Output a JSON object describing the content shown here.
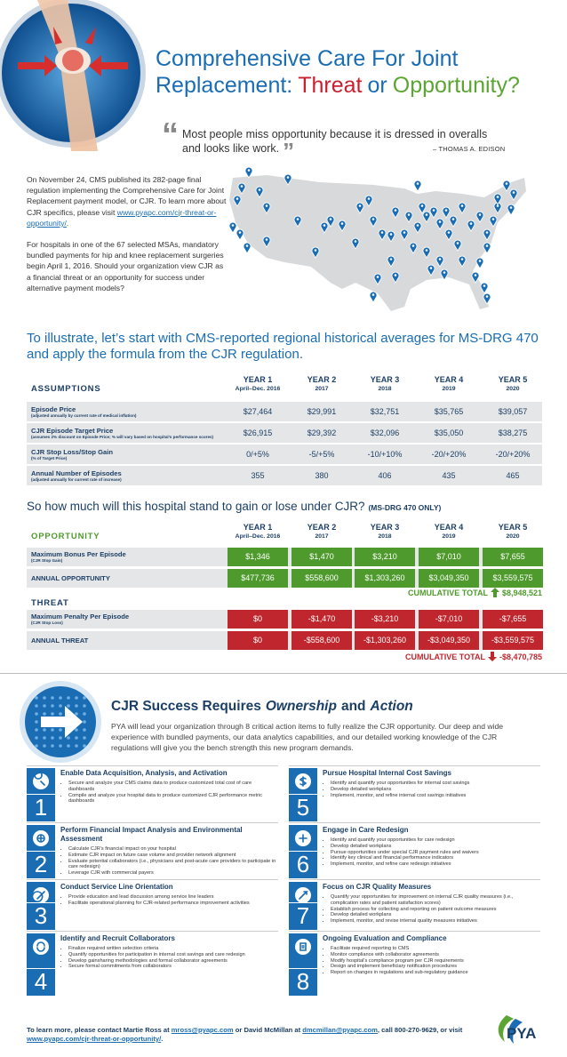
{
  "header": {
    "title_line1": "Comprehensive Care For Joint",
    "title_line2": [
      {
        "text": "Replacement:",
        "color": "#1a6db3"
      },
      {
        "text": "Threat",
        "color": "#c8202f"
      },
      {
        "text": "or",
        "color": "#1a6db3"
      },
      {
        "text": "Opportunity?",
        "color": "#5ba532"
      }
    ]
  },
  "quote": {
    "open_mark": "“",
    "text": "Most people miss opportunity because it is dressed in overalls and looks like work.",
    "close_mark": "”",
    "author": "– THOMAS A. EDISON"
  },
  "intro": [
    [
      {
        "text": "On November 24, CMS published its 282-page final regulation implementing the Comprehensive Care for Joint Replacement payment model, or CJR. To learn more about CJR specifics, please visit "
      },
      {
        "link": "www.pyapc.com/cjr-threat-or-opportunity/"
      },
      {
        "text": "."
      }
    ],
    [
      {
        "text": "For hospitals in one of the 67 selected MSAs, mandatory bundled payments for hip and knee replacement surgeries begin April 1, 2016. Should your organization view CJR as a financial threat or an opportunity for success under alternative payment models?"
      }
    ]
  ],
  "headline": "To illustrate, let’s start with CMS-reported regional historical averages for MS-DRG 470 and apply the formula from the CJR regulation.",
  "years": [
    {
      "year": "YEAR 1",
      "sub": "April–Dec. 2016"
    },
    {
      "year": "YEAR 2",
      "sub": "2017"
    },
    {
      "year": "YEAR 3",
      "sub": "2018"
    },
    {
      "year": "YEAR 4",
      "sub": "2019"
    },
    {
      "year": "YEAR 5",
      "sub": "2020"
    }
  ],
  "assumptions": {
    "label": "ASSUMPTIONS",
    "rows": [
      {
        "label": "Episode Price",
        "sub": "(adjusted annually by current rate of medical inflation)",
        "cells": [
          "$27,464",
          "$29,991",
          "$32,751",
          "$35,765",
          "$39,057"
        ]
      },
      {
        "label": "CJR Episode Target Price",
        "sub": "(assumes 2% discount on Episode Price; % will vary based on hospital’s performance scores)",
        "cells": [
          "$26,915",
          "$29,392",
          "$32,096",
          "$35,050",
          "$38,275"
        ]
      },
      {
        "label": "CJR Stop Loss/Stop Gain",
        "sub": "(% of Target Price)",
        "cells": [
          "0/+5%",
          "-5/+5%",
          "-10/+10%",
          "-20/+20%",
          "-20/+20%"
        ]
      },
      {
        "label": "Annual Number of Episodes",
        "sub": "(adjusted annually for current rate of increase)",
        "cells": [
          "355",
          "380",
          "406",
          "435",
          "465"
        ]
      }
    ]
  },
  "question": {
    "text": "So how much will this hospital stand to gain or lose under CJR?",
    "note": "(MS-DRG 470 ONLY)"
  },
  "opportunity": {
    "label": "OPPORTUNITY",
    "rows": [
      {
        "label": "Maximum Bonus Per Episode",
        "sub": "(CJR Stop Gain)",
        "cells": [
          "$1,346",
          "$1,470",
          "$3,210",
          "$7,010",
          "$7,655"
        ]
      },
      {
        "label": "ANNUAL OPPORTUNITY",
        "cells": [
          "$477,736",
          "$558,600",
          "$1,303,260",
          "$3,049,350",
          "$3,559,575"
        ]
      }
    ],
    "cumulative_label": "CUMULATIVE TOTAL",
    "cumulative_value": "$8,948,521"
  },
  "threat": {
    "label": "THREAT",
    "rows": [
      {
        "label": "Maximum Penalty Per Episode",
        "sub": "(CJR Stop Loss)",
        "cells": [
          "$0",
          "-$1,470",
          "-$3,210",
          "-$7,010",
          "-$7,655"
        ]
      },
      {
        "label": "ANNUAL THREAT",
        "cells": [
          "$0",
          "-$558,600",
          "-$1,303,260",
          "-$3,049,350",
          "-$3,559,575"
        ]
      }
    ],
    "cumulative_label": "CUMULATIVE TOTAL",
    "cumulative_value": "-$8,470,785"
  },
  "success": {
    "title": [
      {
        "text": "CJR Success Requires"
      },
      {
        "text": "Ownership",
        "emphasis": true
      },
      {
        "text": "and"
      },
      {
        "text": "Action",
        "emphasis": true
      }
    ],
    "body": "PYA will lead your organization through 8 critical action items to fully realize the CJR opportunity. Our deep and wide experience with bundled payments, our data analytics capabilities, and our detailed working knowledge of the CJR regulations will give you the bench strength this new program demands."
  },
  "items": [
    {
      "number": "1",
      "title": "Enable Data Acquisition, Analysis, and Activation",
      "bullets": [
        "Secure and analyze your CMS claims data to produce customized total cost of care dashboards",
        "Compile and analyze your hospital data to produce customized CJR performance metric dashboards"
      ]
    },
    {
      "number": "2",
      "title": "Perform Financial Impact Analysis and Environmental Assessment",
      "bullets": [
        "Calculate CJR’s financial impact on your hospital",
        "Estimate CJR impact on future case volume and provider network alignment",
        "Evaluate potential collaborators (i.e., physicians and post-acute care providers to participate in care redesign)",
        "Leverage CJR with commercial payers"
      ]
    },
    {
      "number": "3",
      "title": "Conduct Service Line Orientation",
      "bullets": [
        "Provide education and lead discussion among service line leaders",
        "Facilitate operational planning for CJR-related performance improvement activities"
      ]
    },
    {
      "number": "4",
      "title": "Identify and Recruit Collaborators",
      "bullets": [
        "Finalize required written selection criteria",
        "Quantify opportunities for participation in internal cost savings and care redesign",
        "Develop gainsharing methodologies and formal collaborator agreements",
        "Secure formal commitments from collaborators"
      ]
    },
    {
      "number": "5",
      "title": "Pursue Hospital Internal Cost Savings",
      "bullets": [
        "Identify and quantify your opportunities for internal cost savings",
        "Develop detailed workplans",
        "Implement, monitor, and refine internal cost savings initiatives"
      ]
    },
    {
      "number": "6",
      "title": "Engage in Care Redesign",
      "bullets": [
        "Identify and quantify your opportunities for care redesign",
        "Develop detailed workplans",
        "Pursue opportunities under special CJR payment rules and waivers",
        "Identify key clinical and financial performance indicators",
        "Implement, monitor, and refine care redesign initiatives"
      ]
    },
    {
      "number": "7",
      "title": "Focus on CJR Quality Measures",
      "bullets": [
        "Quantify your opportunities for improvement on internal CJR quality measures (i.e., complication rates and patient satisfaction scores)",
        "Establish process for collecting and reporting on patient outcome measures",
        "Develop detailed workplans",
        "Implement, monitor, and revise internal quality measures initiatives"
      ]
    },
    {
      "number": "8",
      "title": "Ongoing Evaluation and Compliance",
      "bullets": [
        "Facilitate required reporting to CMS",
        "Monitor compliance with collaborator agreements",
        "Modify hospital’s compliance program per CJR requirements",
        "Design and implement beneficiary notification procedures",
        "Report on changes in regulations and sub-regulatory guidance"
      ]
    }
  ],
  "footer": {
    "text": [
      {
        "text": "To learn more, please contact Martie Ross at "
      },
      {
        "link": "mross@pyapc.com"
      },
      {
        "text": " or David McMillan at "
      },
      {
        "link": "dmcmillan@pyapc.com"
      },
      {
        "text": ", call 800-270-9629, or visit "
      },
      {
        "link": "www.pyapc.com/cjr-threat-or-opportunity/"
      },
      {
        "text": "."
      }
    ],
    "logo": "PYA"
  }
}
